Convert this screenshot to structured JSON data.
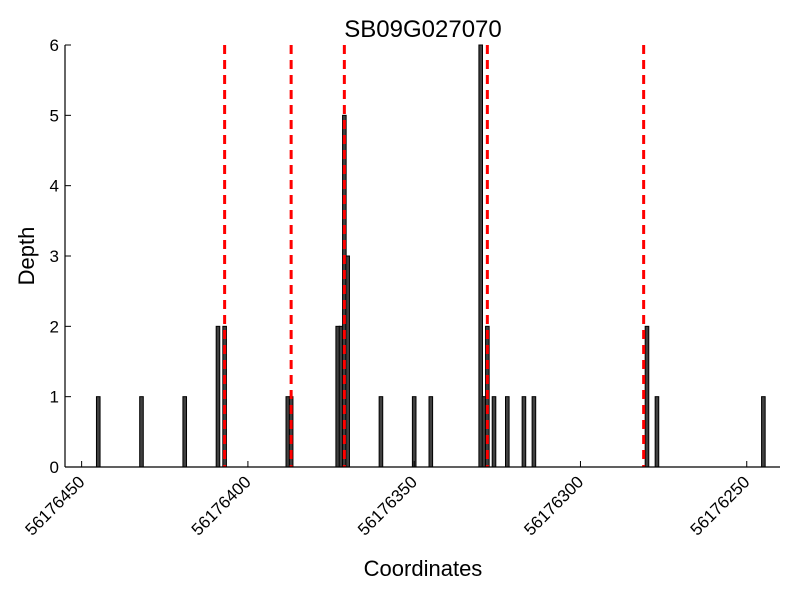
{
  "chart_data": {
    "type": "bar",
    "title": "SB09G027070",
    "xlabel": "Coordinates",
    "ylabel": "Depth",
    "x_reversed": true,
    "xlim": [
      56176455,
      56176240
    ],
    "ylim": [
      0,
      6
    ],
    "x_ticks": [
      56176450,
      56176400,
      56176350,
      56176300,
      56176250
    ],
    "x_tick_labels": [
      "56176450",
      "56176400",
      "56176350",
      "56176300",
      "56176250"
    ],
    "y_ticks": [
      0,
      1,
      2,
      3,
      4,
      5,
      6
    ],
    "y_tick_labels": [
      "0",
      "1",
      "2",
      "3",
      "4",
      "5",
      "6"
    ],
    "grid": false,
    "bar_color": "#404040",
    "marker_color": "#ff0000",
    "series": [
      {
        "x": [
          56176445,
          56176432,
          56176419,
          56176409,
          56176407,
          56176388,
          56176387,
          56176373,
          56176372,
          56176371,
          56176370,
          56176360,
          56176350,
          56176345,
          56176330,
          56176329,
          56176328,
          56176326,
          56176322,
          56176317,
          56176314,
          56176280,
          56176277,
          56176245
        ],
        "values": [
          1,
          1,
          1,
          2,
          2,
          1,
          1,
          2,
          2,
          5,
          3,
          1,
          1,
          1,
          6,
          1,
          2,
          1,
          1,
          1,
          1,
          2,
          1,
          1
        ]
      }
    ],
    "vertical_markers": [
      56176407,
      56176387,
      56176371,
      56176328,
      56176281
    ]
  }
}
